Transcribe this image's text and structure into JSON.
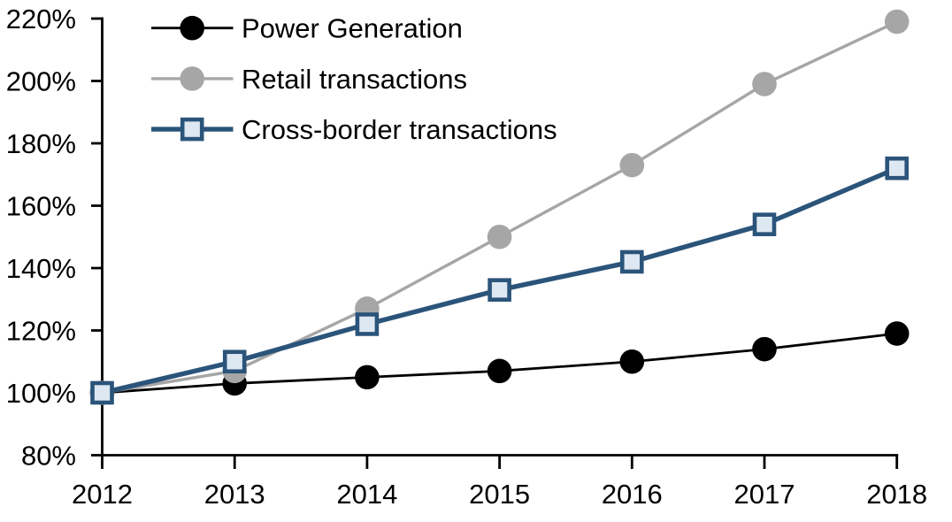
{
  "chart_data": {
    "type": "line",
    "title": "",
    "xlabel": "",
    "ylabel": "",
    "categories": [
      "2012",
      "2013",
      "2014",
      "2015",
      "2016",
      "2017",
      "2018"
    ],
    "series": [
      {
        "name": "Power Generation",
        "values": [
          100,
          103,
          105,
          107,
          110,
          114,
          119
        ],
        "color": "#000000",
        "marker": "circle",
        "marker_fill": "#000000",
        "line_width": 2.8
      },
      {
        "name": "Retail transactions",
        "values": [
          100,
          107,
          127,
          150,
          173,
          199,
          219
        ],
        "color": "#A6A6A6",
        "marker": "circle",
        "marker_fill": "#A6A6A6",
        "line_width": 3.4
      },
      {
        "name": "Cross-border transactions",
        "values": [
          100,
          110,
          122,
          133,
          142,
          154,
          172
        ],
        "color": "#2B547A",
        "marker": "square",
        "marker_fill": "#DDE8F3",
        "line_width": 5.4
      }
    ],
    "ylim": [
      80,
      220
    ],
    "ytick_values": [
      80,
      100,
      120,
      140,
      160,
      180,
      200,
      220
    ],
    "ytick_labels": [
      "80%",
      "100%",
      "120%",
      "140%",
      "160%",
      "180%",
      "200%",
      "220%"
    ],
    "grid": false,
    "legend_position": "top-left",
    "axis_color": "#000000"
  }
}
